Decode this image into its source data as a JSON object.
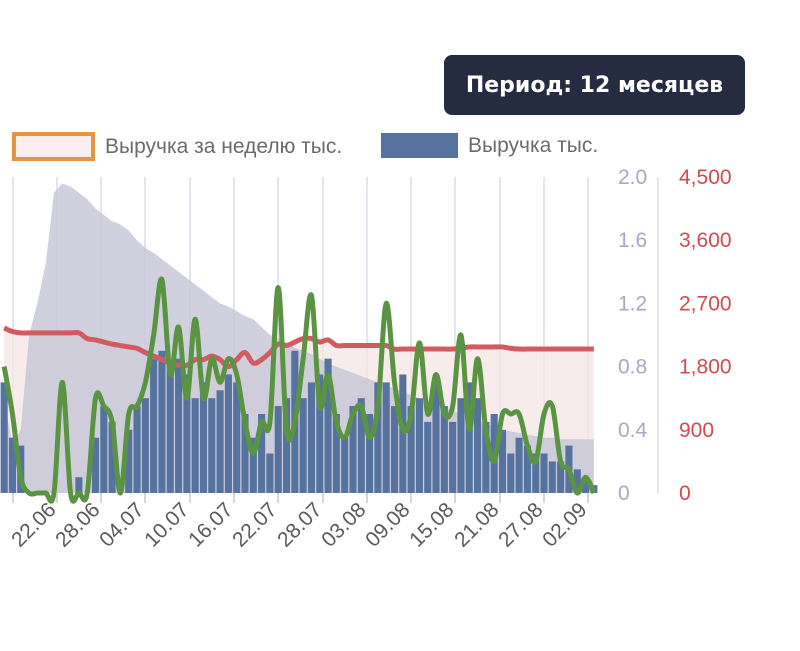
{
  "header": {
    "period_label": "Период: 12 месяцев"
  },
  "legend": {
    "items": [
      {
        "label": "Выручка за неделю тыс.",
        "swatch": "outline",
        "color": "#e89543",
        "fill": "#fbeeee"
      },
      {
        "label": "Выручка тыс.",
        "swatch": "fill",
        "color": "#56739f"
      }
    ]
  },
  "chart_data": {
    "type": "bar",
    "x_ticks": [
      "22.06",
      "28.06",
      "04.07",
      "10.07",
      "16.07",
      "22.07",
      "28.07",
      "03.08",
      "09.08",
      "15.08",
      "21.08",
      "27.08",
      "02.09"
    ],
    "y_left": {
      "ticks": [
        "0",
        "0.4",
        "0.8",
        "1.2",
        "1.6",
        "2.0"
      ],
      "range": [
        0,
        2.0
      ],
      "color": "#a7a9c2"
    },
    "y_right": {
      "ticks": [
        "0",
        "900",
        "1,800",
        "2,700",
        "3,600",
        "4,500"
      ],
      "range": [
        0,
        4500
      ],
      "color": "#d04a4f"
    },
    "grid": true,
    "colors": {
      "bars": "#56739f",
      "line_green": "#5a9442",
      "line_red": "#d15b61",
      "area_gray": "#c9c8d8",
      "area_pink": "#f5e2e2"
    },
    "series": [
      {
        "name": "Выручка тыс.",
        "kind": "bars",
        "values": [
          0.7,
          0.35,
          0.3,
          0.0,
          0.0,
          0.0,
          0.0,
          0.0,
          0.0,
          0.1,
          0.0,
          0.35,
          0.55,
          0.45,
          0.0,
          0.4,
          0.55,
          0.6,
          0.85,
          0.9,
          0.8,
          0.85,
          0.75,
          0.6,
          0.7,
          0.6,
          0.65,
          0.75,
          0.7,
          0.5,
          0.35,
          0.5,
          0.25,
          0.55,
          0.6,
          0.9,
          0.6,
          0.7,
          0.75,
          0.85,
          0.5,
          0.35,
          0.55,
          0.6,
          0.5,
          0.7,
          0.7,
          0.55,
          0.75,
          0.55,
          0.6,
          0.45,
          0.7,
          0.55,
          0.45,
          0.6,
          0.7,
          0.6,
          0.45,
          0.5,
          0.4,
          0.25,
          0.35,
          0.3,
          0.25,
          0.25,
          0.2,
          0.2,
          0.3,
          0.15,
          0.1,
          0.05
        ]
      },
      {
        "name": "",
        "kind": "line",
        "values": [
          0.8,
          0.5,
          0.1,
          0.0,
          0.0,
          0.0,
          0.0,
          0.7,
          0.0,
          0.0,
          0.0,
          0.6,
          0.55,
          0.45,
          0.0,
          0.5,
          0.55,
          0.7,
          1.0,
          1.35,
          0.75,
          1.05,
          0.6,
          1.1,
          0.6,
          0.85,
          0.7,
          0.85,
          0.75,
          0.45,
          0.25,
          0.45,
          0.45,
          1.3,
          0.4,
          0.45,
          0.85,
          1.25,
          0.55,
          0.75,
          0.45,
          0.35,
          0.5,
          0.55,
          0.35,
          0.55,
          1.2,
          0.7,
          0.4,
          0.5,
          0.95,
          0.5,
          0.75,
          0.5,
          0.55,
          1.0,
          0.4,
          0.85,
          0.4,
          0.2,
          0.5,
          0.5,
          0.5,
          0.3,
          0.2,
          0.5,
          0.55,
          0.2,
          0.15,
          0.0,
          0.1,
          0.0
        ]
      },
      {
        "name": "",
        "kind": "line_right_axis",
        "values": [
          2350,
          2300,
          2280,
          2280,
          2280,
          2280,
          2280,
          2280,
          2280,
          2280,
          2200,
          2180,
          2150,
          2120,
          2100,
          2080,
          2060,
          2000,
          1950,
          1900,
          1850,
          1820,
          1820,
          1900,
          1900,
          1950,
          1900,
          1800,
          1900,
          2000,
          1850,
          1900,
          2000,
          2120,
          2100,
          2150,
          2200,
          2200,
          2150,
          2180,
          2100,
          2100,
          2100,
          2100,
          2100,
          2100,
          2100,
          2050,
          2050,
          2050,
          2050,
          2050,
          2050,
          2050,
          2050,
          2060,
          2080,
          2080,
          2080,
          2080,
          2080,
          2060,
          2050,
          2050,
          2050,
          2050,
          2050,
          2050,
          2050,
          2050,
          2050,
          2050
        ]
      },
      {
        "name": "",
        "kind": "area",
        "values": [
          0.6,
          0.3,
          0.4,
          1.0,
          1.2,
          1.45,
          1.9,
          1.96,
          1.94,
          1.9,
          1.86,
          1.8,
          1.76,
          1.72,
          1.7,
          1.66,
          1.6,
          1.55,
          1.52,
          1.48,
          1.44,
          1.4,
          1.36,
          1.32,
          1.28,
          1.24,
          1.2,
          1.18,
          1.15,
          1.12,
          1.1,
          1.05,
          1.0,
          0.98,
          0.95,
          0.92,
          0.9,
          0.88,
          0.85,
          0.82,
          0.8,
          0.78,
          0.76,
          0.74,
          0.72,
          0.7,
          0.68,
          0.66,
          0.64,
          0.62,
          0.6,
          0.58,
          0.56,
          0.54,
          0.52,
          0.5,
          0.48,
          0.46,
          0.44,
          0.42,
          0.4,
          0.39,
          0.38,
          0.37,
          0.36,
          0.35,
          0.35,
          0.34,
          0.34,
          0.34,
          0.34,
          0.34
        ]
      }
    ]
  }
}
